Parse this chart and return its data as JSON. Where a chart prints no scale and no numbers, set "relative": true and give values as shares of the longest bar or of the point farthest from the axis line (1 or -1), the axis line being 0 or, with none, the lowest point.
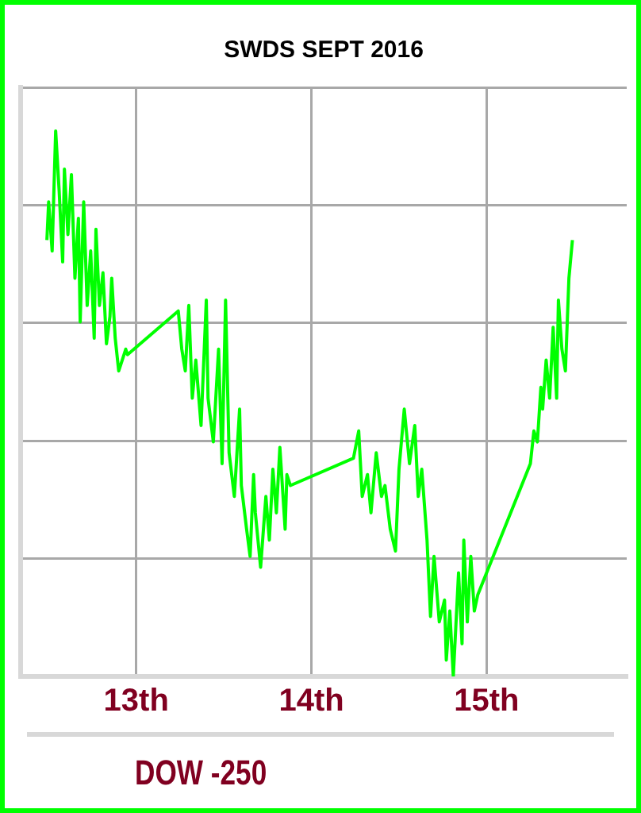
{
  "chart_data": {
    "type": "line",
    "title": "SWDS SEPT 2016",
    "relative": true,
    "xlim": [
      12.34,
      15.8
    ],
    "xticks": [
      {
        "value": 13,
        "label": "13th"
      },
      {
        "value": 14,
        "label": "14th"
      },
      {
        "value": 15,
        "label": "15th"
      }
    ],
    "tick_labels": "x",
    "grid": true,
    "legend": false,
    "marker": "none",
    "line_style": "solid",
    "annotations": [
      "DOW -250"
    ],
    "series": [
      {
        "color": "#00ff00",
        "x": [
          12.49,
          12.5,
          12.52,
          12.54,
          12.56,
          12.58,
          12.59,
          12.61,
          12.63,
          12.65,
          12.67,
          12.68,
          12.7,
          12.72,
          12.74,
          12.76,
          12.77,
          12.79,
          12.81,
          12.83,
          12.85,
          12.86,
          12.88,
          12.9,
          12.92,
          12.94,
          12.95,
          13.24,
          13.26,
          13.28,
          13.3,
          13.32,
          13.34,
          13.37,
          13.4,
          13.41,
          13.44,
          13.47,
          13.49,
          13.51,
          13.53,
          13.56,
          13.59,
          13.6,
          13.63,
          13.65,
          13.67,
          13.68,
          13.71,
          13.74,
          13.76,
          13.78,
          13.8,
          13.82,
          13.85,
          13.86,
          13.88,
          14.24,
          14.27,
          14.29,
          14.32,
          14.34,
          14.37,
          14.4,
          14.42,
          14.45,
          14.48,
          14.5,
          14.53,
          14.56,
          14.59,
          14.61,
          14.63,
          14.66,
          14.68,
          14.7,
          14.73,
          14.76,
          14.77,
          14.79,
          14.81,
          14.84,
          14.86,
          14.87,
          14.89,
          14.91,
          14.93,
          14.95,
          15.25,
          15.27,
          15.29,
          15.31,
          15.32,
          15.34,
          15.36,
          15.38,
          15.4,
          15.41,
          15.43,
          15.45,
          15.47,
          15.49
        ],
        "values": [
          0.8,
          0.87,
          0.78,
          1.0,
          0.89,
          0.76,
          0.93,
          0.81,
          0.92,
          0.73,
          0.84,
          0.65,
          0.87,
          0.68,
          0.78,
          0.62,
          0.82,
          0.68,
          0.74,
          0.61,
          0.66,
          0.73,
          0.62,
          0.56,
          0.58,
          0.6,
          0.59,
          0.67,
          0.6,
          0.56,
          0.68,
          0.51,
          0.58,
          0.46,
          0.69,
          0.51,
          0.43,
          0.6,
          0.39,
          0.69,
          0.41,
          0.33,
          0.49,
          0.35,
          0.27,
          0.22,
          0.37,
          0.3,
          0.2,
          0.33,
          0.25,
          0.38,
          0.3,
          0.42,
          0.27,
          0.37,
          0.35,
          0.4,
          0.45,
          0.33,
          0.37,
          0.3,
          0.41,
          0.33,
          0.35,
          0.27,
          0.23,
          0.38,
          0.49,
          0.39,
          0.46,
          0.33,
          0.38,
          0.25,
          0.11,
          0.22,
          0.1,
          0.14,
          0.03,
          0.12,
          0.0,
          0.19,
          0.06,
          0.25,
          0.1,
          0.22,
          0.12,
          0.15,
          0.39,
          0.45,
          0.43,
          0.53,
          0.49,
          0.58,
          0.51,
          0.64,
          0.51,
          0.69,
          0.6,
          0.56,
          0.73,
          0.8
        ]
      }
    ]
  }
}
